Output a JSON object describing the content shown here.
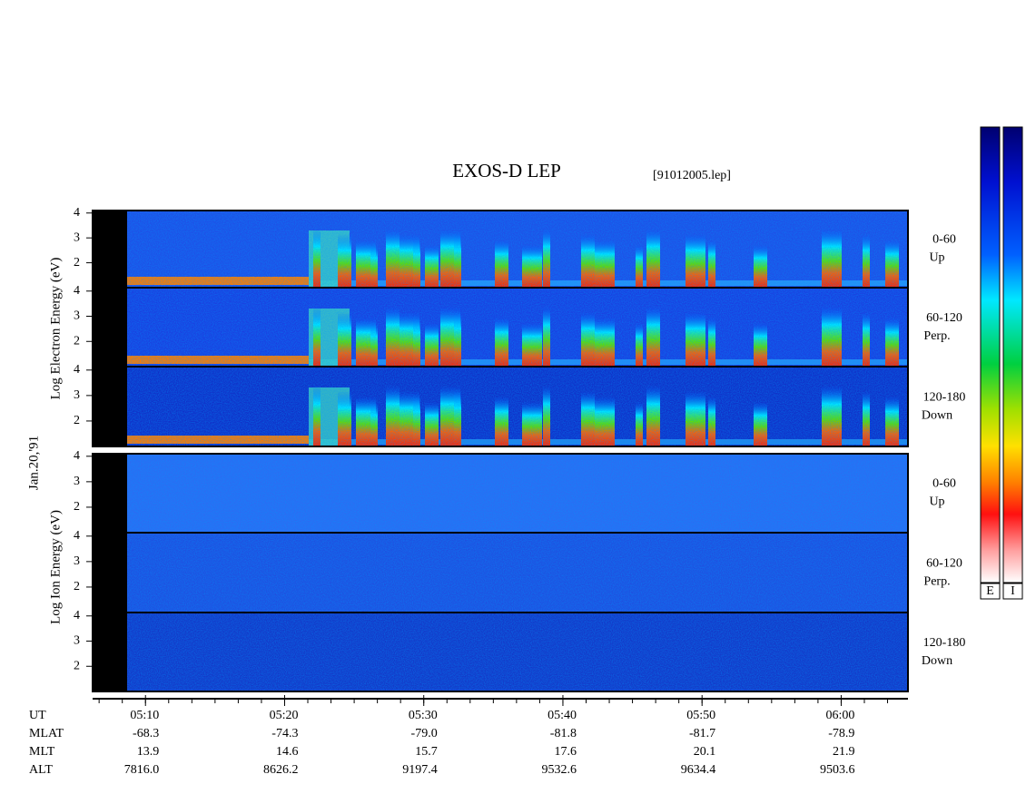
{
  "chart_data": {
    "type": "spectrogram",
    "title": "EXOS-D LEP",
    "subtitle": "[91012005.lep]",
    "date_label": "Jan.20,'91",
    "ylim": [
      1,
      4.1
    ],
    "yticks": [
      2,
      3,
      4
    ],
    "xlim": [
      306.2,
      364.8
    ],
    "xticks": [
      {
        "value": 310,
        "label": "05:10"
      },
      {
        "value": 320,
        "label": "05:20"
      },
      {
        "value": 330,
        "label": "05:30"
      },
      {
        "value": 340,
        "label": "05:40"
      },
      {
        "value": 350,
        "label": "05:50"
      },
      {
        "value": 360,
        "label": "06:00"
      }
    ],
    "groups": [
      {
        "ylabel": "Log  Electron  Energy (eV)",
        "panels": [
          {
            "angle": "0-60",
            "dir": "Up"
          },
          {
            "angle": "60-120",
            "dir": "Perp."
          },
          {
            "angle": "120-180",
            "dir": "Down"
          }
        ]
      },
      {
        "ylabel": "Log  Ion  Energy (eV)",
        "panels": [
          {
            "angle": "0-60",
            "dir": "Up"
          },
          {
            "angle": "60-120",
            "dir": "Perp."
          },
          {
            "angle": "120-180",
            "dir": "Down"
          }
        ]
      }
    ],
    "x_row_label": "UT",
    "orbit_rows": [
      {
        "label": "MLAT",
        "values": [
          "-68.3",
          "-74.3",
          "-79.0",
          "-81.8",
          "-81.7",
          "-78.9"
        ]
      },
      {
        "label": "MLT",
        "values": [
          "13.9",
          "14.6",
          "15.7",
          "17.6",
          "20.1",
          "21.9"
        ]
      },
      {
        "label": "ALT",
        "values": [
          "7816.0",
          "8626.2",
          "9197.4",
          "9532.6",
          "9634.4",
          "9503.6"
        ]
      }
    ],
    "colorbars": [
      "E",
      "I"
    ]
  }
}
